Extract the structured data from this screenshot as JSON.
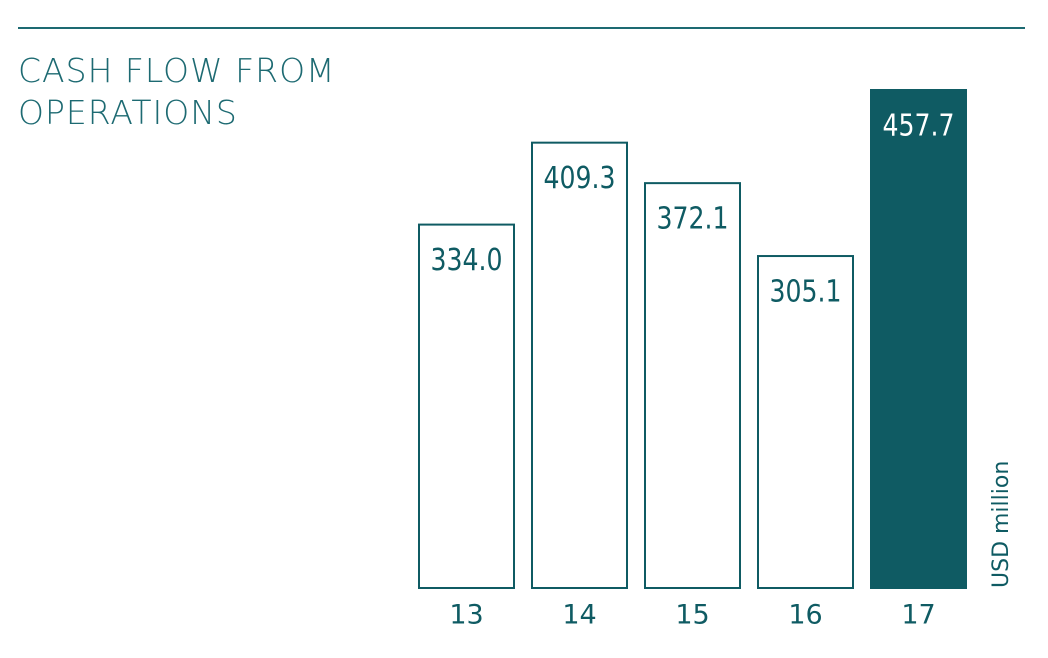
{
  "chart_data": {
    "type": "bar",
    "title": "CASH FLOW FROM OPERATIONS",
    "unit_label": "USD million",
    "categories": [
      "13",
      "14",
      "15",
      "16",
      "17"
    ],
    "values": [
      334.0,
      409.3,
      372.1,
      305.1,
      457.7
    ],
    "value_labels": [
      "334.0",
      "409.3",
      "372.1",
      "305.1",
      "457.7"
    ],
    "color": "#0f5b63",
    "bar_fills": [
      "#ffffff",
      "#ffffff",
      "#ffffff",
      "#ffffff",
      "#0f5b63"
    ]
  }
}
